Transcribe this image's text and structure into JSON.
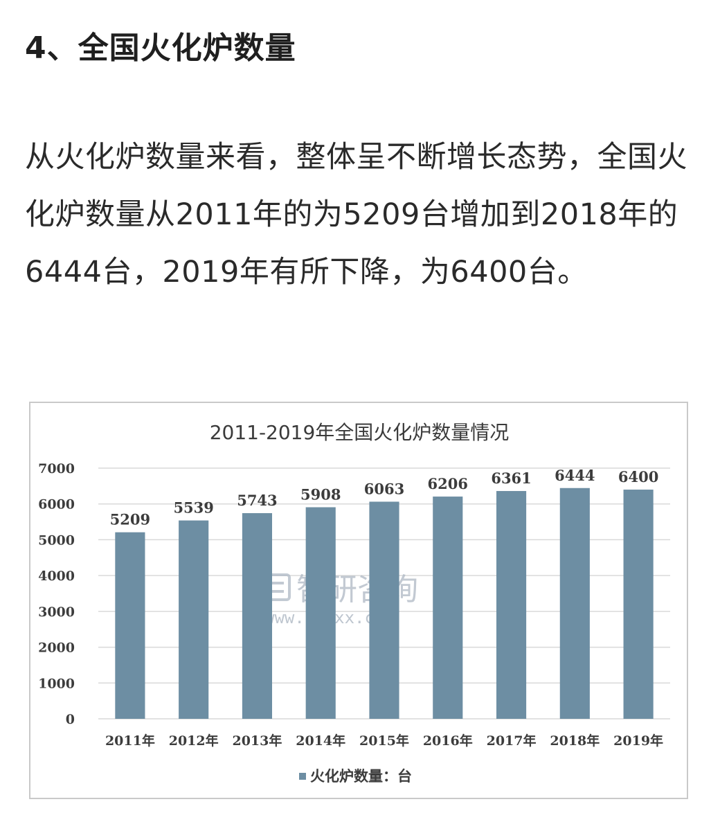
{
  "article": {
    "heading": "4、全国火化炉数量",
    "paragraph": "从火化炉数量来看，整体呈不断增长态势，全国火化炉数量从2011年的为5209台增加到2018年的6444台，2019年有所下降，为6400台。"
  },
  "watermark": {
    "logo_icon": "zhiyan-logo-icon",
    "brand": "智研咨询",
    "url": "www.chyxx.com"
  },
  "chart_data": {
    "type": "bar",
    "title": "2011-2019年全国火化炉数量情况",
    "categories": [
      "2011年",
      "2012年",
      "2013年",
      "2014年",
      "2015年",
      "2016年",
      "2017年",
      "2018年",
      "2019年"
    ],
    "series": [
      {
        "name": "火化炉数量：台",
        "values": [
          5209,
          5539,
          5743,
          5908,
          6063,
          6206,
          6361,
          6444,
          6400
        ],
        "color": "#6d8ea3"
      }
    ],
    "ylim": [
      0,
      7000
    ],
    "yticks": [
      0,
      1000,
      2000,
      3000,
      4000,
      5000,
      6000,
      7000
    ],
    "grid": true,
    "legend_position": "bottom"
  }
}
